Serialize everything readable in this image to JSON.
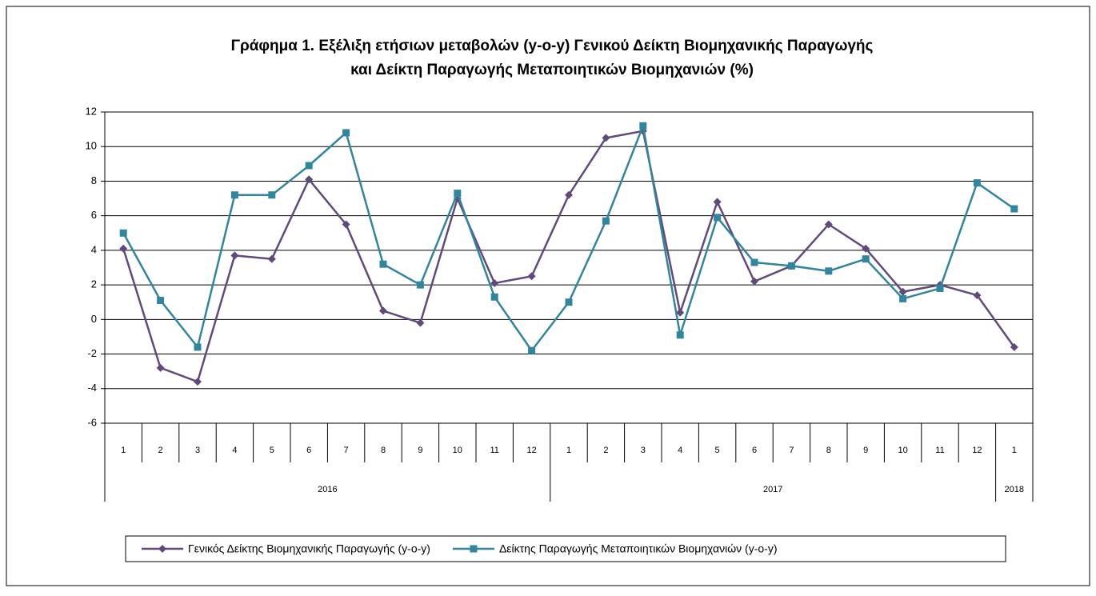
{
  "chart_data": {
    "type": "line",
    "title": [
      "Γράφημα 1. Εξέλιξη ετήσιων μεταβολών (y-o-y) Γενικού Δείκτη Βιομηχανικής Παραγωγής",
      "και Δείκτη Παραγωγής Μεταποιητικών Βιομηχανιών (%)"
    ],
    "categories": [
      "1",
      "2",
      "3",
      "4",
      "5",
      "6",
      "7",
      "8",
      "9",
      "10",
      "11",
      "12",
      "1",
      "2",
      "3",
      "4",
      "5",
      "6",
      "7",
      "8",
      "9",
      "10",
      "11",
      "12",
      "1"
    ],
    "x_groups": [
      "2016",
      null,
      null,
      null,
      null,
      null,
      null,
      null,
      null,
      null,
      null,
      null,
      "2017",
      null,
      null,
      null,
      null,
      null,
      null,
      null,
      null,
      null,
      null,
      null,
      "2018"
    ],
    "series": [
      {
        "name": "Γενικός Δείκτης Βιομηχανικής Παραγωγής (y-o-y)",
        "color": "#604a7b",
        "marker": "diamond",
        "values": [
          4.1,
          -2.8,
          -3.6,
          3.7,
          3.5,
          8.1,
          5.5,
          0.5,
          -0.2,
          7.0,
          2.1,
          2.5,
          7.2,
          10.5,
          10.9,
          0.4,
          6.8,
          2.2,
          3.1,
          5.5,
          4.1,
          1.6,
          2.0,
          1.4,
          -1.6
        ]
      },
      {
        "name": "Δείκτης Παραγωγής Μεταποιητικών  Βιομηχανιών (y-o-y)",
        "color": "#31859c",
        "marker": "square",
        "values": [
          5.0,
          1.1,
          -1.6,
          7.2,
          7.2,
          8.9,
          10.8,
          3.2,
          2.0,
          7.3,
          1.3,
          -1.8,
          1.0,
          5.7,
          11.2,
          -0.9,
          5.9,
          3.3,
          3.1,
          2.8,
          3.5,
          1.2,
          1.8,
          7.9,
          6.4
        ]
      }
    ],
    "ylim": [
      -6,
      12
    ],
    "yticks": [
      -6,
      -4,
      -2,
      0,
      2,
      4,
      6,
      8,
      10,
      12
    ],
    "grid": true,
    "legend": "bottom"
  }
}
